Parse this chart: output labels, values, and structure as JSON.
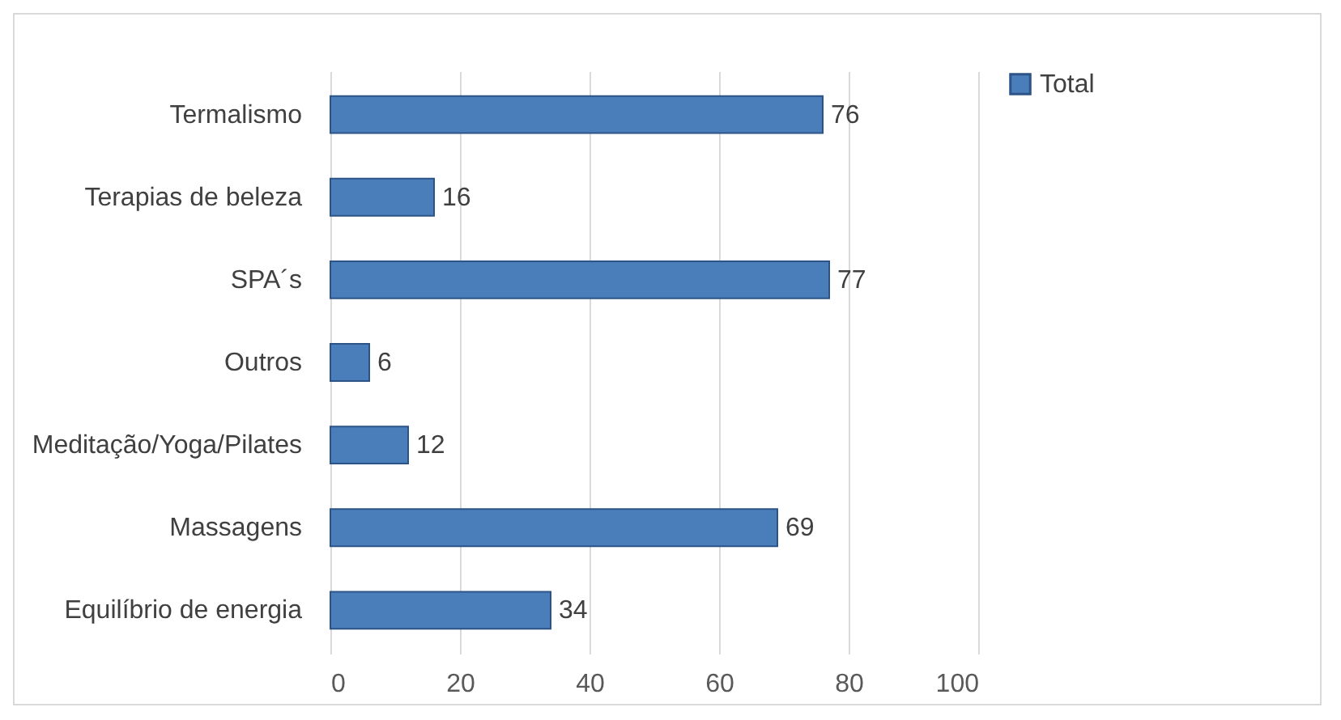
{
  "chart_data": {
    "type": "bar",
    "orientation": "horizontal",
    "categories": [
      "Termalismo",
      "Terapias de beleza",
      "SPA´s",
      "Outros",
      "Meditação/Yoga/Pilates",
      "Massagens",
      "Equilíbrio de energia"
    ],
    "series": [
      {
        "name": "Total",
        "color": "#4a7ebb",
        "values": [
          76,
          16,
          77,
          6,
          12,
          69,
          34
        ]
      }
    ],
    "xlim": [
      0,
      100
    ],
    "xticks": [
      0,
      20,
      40,
      60,
      80,
      100
    ],
    "grid": "x",
    "legend": "right",
    "data_labels": true
  }
}
